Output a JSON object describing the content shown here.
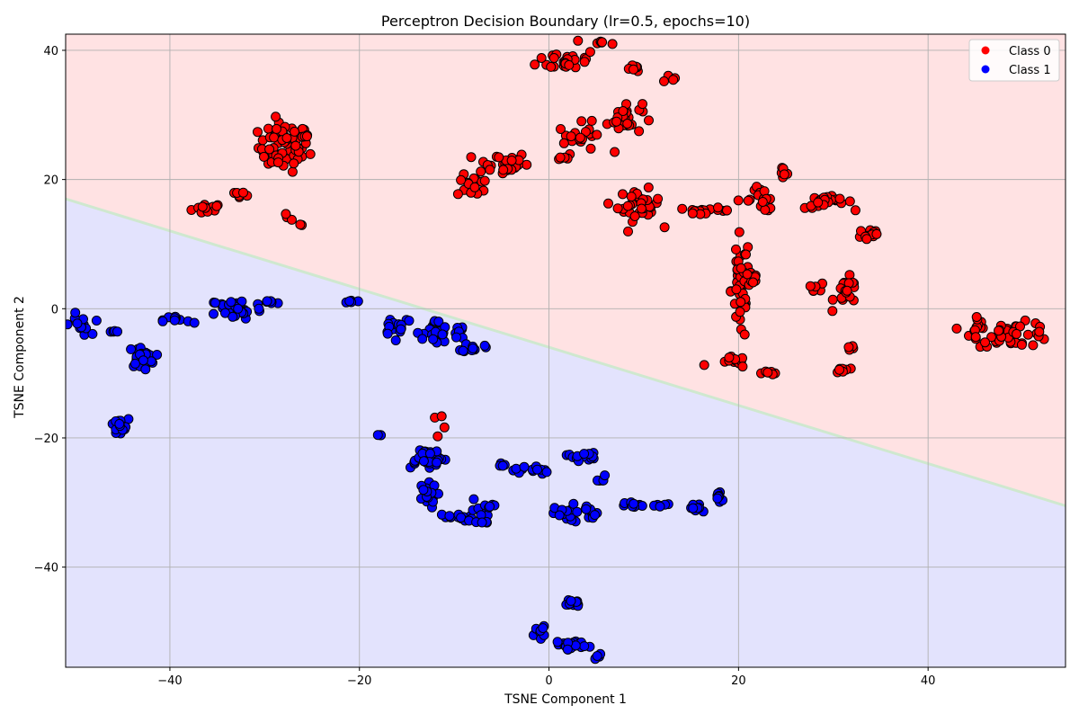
{
  "chart_data": {
    "type": "scatter",
    "title": "Perceptron Decision Boundary (lr=0.5, epochs=10)",
    "xlabel": "TSNE Component 1",
    "ylabel": "TSNE Component 2",
    "xlim": [
      -51,
      54.5
    ],
    "ylim": [
      -55.5,
      42.5
    ],
    "xticks": [
      -40,
      -20,
      0,
      20,
      40
    ],
    "yticks": [
      -40,
      -20,
      0,
      20,
      40
    ],
    "xtick_labels": [
      "−40",
      "−20",
      "0",
      "20",
      "40"
    ],
    "ytick_labels": [
      "−40",
      "−20",
      "0",
      "20",
      "40"
    ],
    "grid": true,
    "legend_position": "top-right",
    "decision_boundary": {
      "points": [
        [
          -51,
          17.0
        ],
        [
          54.5,
          -30.5
        ]
      ],
      "region_above": "Class 0",
      "region_below": "Class 1",
      "region_above_color": "#ffe2e3",
      "region_below_color": "#e3e3fd",
      "boundary_color": "#cfe8cf"
    },
    "series": [
      {
        "name": "Class 0",
        "color": "#ff0000",
        "clusters": [
          {
            "cx": -36,
            "cy": 15.5,
            "sx": 1.2,
            "sy": 0.6,
            "n": 18
          },
          {
            "cx": -32.5,
            "cy": 18,
            "sx": 0.8,
            "sy": 0.4,
            "n": 6
          },
          {
            "cx": -28,
            "cy": 25,
            "sx": 1.9,
            "sy": 2.7,
            "n": 65
          },
          {
            "cx": -25.5,
            "cy": 26.5,
            "sx": 0.4,
            "sy": 0.3,
            "n": 3
          },
          {
            "cx": -27.5,
            "cy": 14,
            "sx": 0.5,
            "sy": 0.5,
            "n": 3
          },
          {
            "cx": -26,
            "cy": 13,
            "sx": 0.2,
            "sy": 0.2,
            "n": 2
          },
          {
            "cx": -8,
            "cy": 19,
            "sx": 1.2,
            "sy": 1.2,
            "n": 16
          },
          {
            "cx": -5,
            "cy": 22.5,
            "sx": 2.0,
            "sy": 1.3,
            "n": 30
          },
          {
            "cx": 2,
            "cy": 38.5,
            "sx": 2.3,
            "sy": 1.2,
            "n": 28
          },
          {
            "cx": 5.5,
            "cy": 41,
            "sx": 1.0,
            "sy": 0.6,
            "n": 6
          },
          {
            "cx": 9,
            "cy": 37.5,
            "sx": 0.6,
            "sy": 0.5,
            "n": 6
          },
          {
            "cx": 12.5,
            "cy": 35.8,
            "sx": 0.5,
            "sy": 0.4,
            "n": 4
          },
          {
            "cx": 3.5,
            "cy": 26.5,
            "sx": 1.8,
            "sy": 1.6,
            "n": 22
          },
          {
            "cx": 1.2,
            "cy": 23.3,
            "sx": 0.6,
            "sy": 0.2,
            "n": 5
          },
          {
            "cx": 8,
            "cy": 29.5,
            "sx": 1.3,
            "sy": 1.8,
            "n": 26
          },
          {
            "cx": 9.5,
            "cy": 16,
            "sx": 1.6,
            "sy": 1.7,
            "n": 30
          },
          {
            "cx": 16.5,
            "cy": 15.2,
            "sx": 2.0,
            "sy": 0.3,
            "n": 20
          },
          {
            "cx": 22.5,
            "cy": 17,
            "sx": 1.3,
            "sy": 1.4,
            "n": 18
          },
          {
            "cx": 24.5,
            "cy": 21,
            "sx": 0.5,
            "sy": 0.5,
            "n": 6
          },
          {
            "cx": 29.5,
            "cy": 16.5,
            "sx": 1.8,
            "sy": 0.7,
            "n": 22
          },
          {
            "cx": 33.8,
            "cy": 11.5,
            "sx": 0.9,
            "sy": 0.9,
            "n": 14
          },
          {
            "cx": 20.2,
            "cy": 3,
            "sx": 0.7,
            "sy": 6.0,
            "n": 48
          },
          {
            "cx": 21.5,
            "cy": 4.5,
            "sx": 0.6,
            "sy": 0.8,
            "n": 8
          },
          {
            "cx": 19.5,
            "cy": -8.3,
            "sx": 0.9,
            "sy": 0.6,
            "n": 12
          },
          {
            "cx": 23.5,
            "cy": -9.8,
            "sx": 0.6,
            "sy": 0.3,
            "n": 7
          },
          {
            "cx": 28,
            "cy": 3,
            "sx": 0.8,
            "sy": 0.9,
            "n": 6
          },
          {
            "cx": 31.5,
            "cy": 2.5,
            "sx": 1.0,
            "sy": 1.6,
            "n": 20
          },
          {
            "cx": 31,
            "cy": -9.5,
            "sx": 0.5,
            "sy": 0.5,
            "n": 8
          },
          {
            "cx": 32,
            "cy": -6,
            "sx": 0.4,
            "sy": 0.3,
            "n": 5
          },
          {
            "cx": 49,
            "cy": -4,
            "sx": 3.0,
            "sy": 1.3,
            "n": 45
          },
          {
            "cx": 45,
            "cy": -2.5,
            "sx": 0.6,
            "sy": 1.1,
            "n": 10
          },
          {
            "cx": -11.5,
            "cy": -17.5,
            "sx": 0.6,
            "sy": 0.8,
            "n": 4
          },
          {
            "cx": 16.5,
            "cy": -8.8,
            "sx": 0.2,
            "sy": 0.2,
            "n": 1
          },
          {
            "cx": 12.3,
            "cy": 12.8,
            "sx": 0.2,
            "sy": 0.2,
            "n": 1
          }
        ]
      },
      {
        "name": "Class 1",
        "color": "#0000ff",
        "clusters": [
          {
            "cx": -49.5,
            "cy": -2.5,
            "sx": 0.8,
            "sy": 1.2,
            "n": 14
          },
          {
            "cx": -46,
            "cy": -3.6,
            "sx": 0.5,
            "sy": 0.2,
            "n": 4
          },
          {
            "cx": -43,
            "cy": -7.5,
            "sx": 1.0,
            "sy": 1.2,
            "n": 28
          },
          {
            "cx": -45.5,
            "cy": -18.5,
            "sx": 0.8,
            "sy": 1.0,
            "n": 20
          },
          {
            "cx": -39,
            "cy": -1.8,
            "sx": 1.2,
            "sy": 0.6,
            "n": 10
          },
          {
            "cx": -33,
            "cy": 0,
            "sx": 2.0,
            "sy": 1.2,
            "n": 40
          },
          {
            "cx": -29.5,
            "cy": 1,
            "sx": 0.6,
            "sy": 0.3,
            "n": 6
          },
          {
            "cx": -20.8,
            "cy": 1.2,
            "sx": 0.6,
            "sy": 0.2,
            "n": 5
          },
          {
            "cx": -16,
            "cy": -2.5,
            "sx": 1.2,
            "sy": 1.2,
            "n": 18
          },
          {
            "cx": -12,
            "cy": -4,
            "sx": 0.9,
            "sy": 1.6,
            "n": 26
          },
          {
            "cx": -9.5,
            "cy": -3.5,
            "sx": 0.5,
            "sy": 1.0,
            "n": 8
          },
          {
            "cx": -8,
            "cy": -6,
            "sx": 0.8,
            "sy": 0.5,
            "n": 12
          },
          {
            "cx": -17.5,
            "cy": -19.7,
            "sx": 0.3,
            "sy": 0.2,
            "n": 3
          },
          {
            "cx": -13,
            "cy": -23,
            "sx": 1.6,
            "sy": 1.2,
            "n": 35
          },
          {
            "cx": -13,
            "cy": -29,
            "sx": 0.8,
            "sy": 1.3,
            "n": 18
          },
          {
            "cx": -10,
            "cy": -32.3,
            "sx": 1.5,
            "sy": 0.4,
            "n": 14
          },
          {
            "cx": -7,
            "cy": -31.5,
            "sx": 0.8,
            "sy": 1.5,
            "n": 16
          },
          {
            "cx": -5,
            "cy": -24.3,
            "sx": 0.5,
            "sy": 0.3,
            "n": 4
          },
          {
            "cx": -2,
            "cy": -25,
            "sx": 1.3,
            "sy": 0.6,
            "n": 14
          },
          {
            "cx": 3.5,
            "cy": -22.8,
            "sx": 1.2,
            "sy": 0.5,
            "n": 14
          },
          {
            "cx": 5.3,
            "cy": -26.5,
            "sx": 0.6,
            "sy": 0.5,
            "n": 5
          },
          {
            "cx": 2,
            "cy": -32,
            "sx": 1.0,
            "sy": 1.2,
            "n": 18
          },
          {
            "cx": 4.5,
            "cy": -31.5,
            "sx": 0.8,
            "sy": 0.8,
            "n": 12
          },
          {
            "cx": 9,
            "cy": -30.5,
            "sx": 0.7,
            "sy": 0.4,
            "n": 10
          },
          {
            "cx": 12,
            "cy": -30.5,
            "sx": 1.0,
            "sy": 0.2,
            "n": 6
          },
          {
            "cx": 15.5,
            "cy": -31,
            "sx": 0.5,
            "sy": 0.6,
            "n": 12
          },
          {
            "cx": 18,
            "cy": -29,
            "sx": 0.4,
            "sy": 0.8,
            "n": 10
          },
          {
            "cx": 2.5,
            "cy": -45.5,
            "sx": 0.6,
            "sy": 0.5,
            "n": 12
          },
          {
            "cx": -1,
            "cy": -50,
            "sx": 0.4,
            "sy": 0.6,
            "n": 8
          },
          {
            "cx": 2.5,
            "cy": -52,
            "sx": 1.2,
            "sy": 0.5,
            "n": 22
          },
          {
            "cx": 5.2,
            "cy": -53.8,
            "sx": 0.3,
            "sy": 0.3,
            "n": 5
          }
        ]
      }
    ]
  }
}
